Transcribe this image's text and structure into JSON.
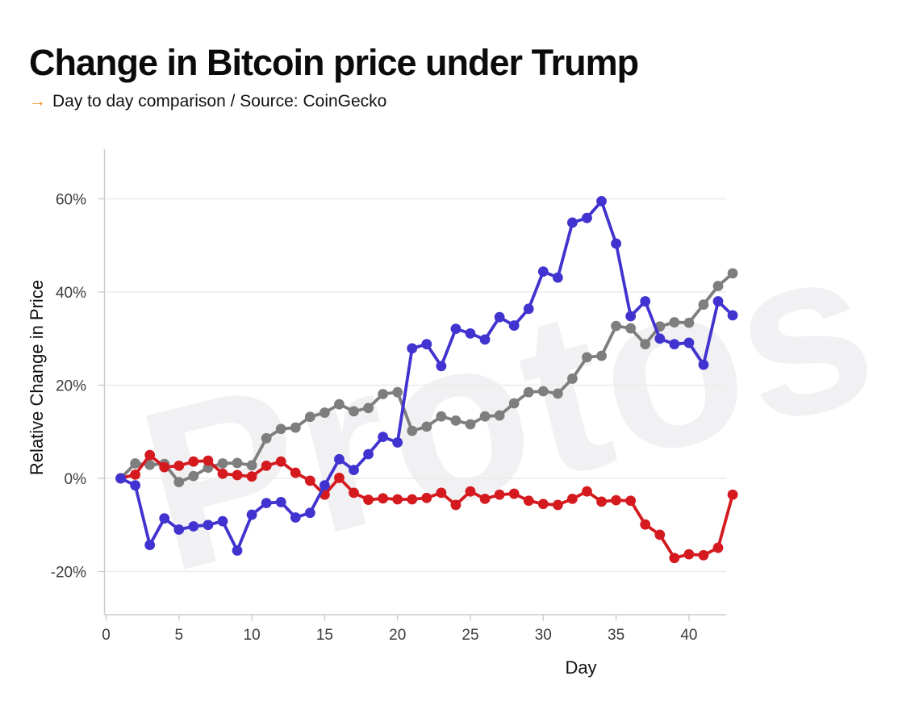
{
  "header": {
    "title": "Change in Bitcoin price under Trump",
    "subtitle_arrow": "→",
    "subtitle": "Day to day comparison / Source: CoinGecko"
  },
  "watermark": "Protos",
  "chart_data": {
    "type": "line",
    "title": "Change in Bitcoin price under Trump",
    "xlabel": "Day",
    "ylabel": "Relative Change in Price",
    "grid": "horizontal",
    "legend": "none (cut off outside visible area)",
    "xlim": [
      0,
      42.5
    ],
    "ylim": [
      -29,
      70
    ],
    "x_ticks": [
      0,
      5,
      10,
      15,
      20,
      25,
      30,
      35,
      40
    ],
    "y_ticks": [
      60,
      40,
      20,
      0,
      -20
    ],
    "y_tick_labels": [
      "60%",
      "40%",
      "20%",
      "0%",
      "-20%"
    ],
    "x": [
      1,
      2,
      3,
      4,
      5,
      6,
      7,
      8,
      9,
      10,
      11,
      12,
      13,
      14,
      15,
      16,
      17,
      18,
      19,
      20,
      21,
      22,
      23,
      24,
      25,
      26,
      27,
      28,
      29,
      30,
      31,
      32,
      33,
      34,
      35,
      36,
      37,
      38,
      39,
      40,
      41,
      42,
      43
    ],
    "series": [
      {
        "name": "gray-series",
        "color": "#7e7e7e",
        "values": [
          0,
          3.2,
          2.9,
          3.1,
          -0.8,
          0.5,
          2.3,
          3.2,
          3.3,
          2.8,
          8.6,
          10.6,
          10.9,
          13.2,
          14.1,
          15.9,
          14.4,
          15.1,
          18.1,
          18.5,
          10.2,
          11.1,
          13.3,
          12.4,
          11.6,
          13.3,
          13.5,
          16.1,
          18.5,
          18.7,
          18.2,
          21.4,
          26.0,
          26.3,
          32.7,
          32.2,
          28.8,
          32.6,
          33.5,
          33.4,
          37.3,
          41.3,
          44.0
        ]
      },
      {
        "name": "red-series",
        "color": "#d41a1f",
        "values": [
          0,
          0.8,
          5.0,
          2.4,
          2.7,
          3.6,
          3.8,
          1.0,
          0.7,
          0.4,
          2.7,
          3.6,
          1.2,
          -0.5,
          -3.5,
          0.1,
          -3.1,
          -4.6,
          -4.3,
          -4.5,
          -4.5,
          -4.2,
          -3.1,
          -5.7,
          -2.8,
          -4.4,
          -3.5,
          -3.3,
          -4.8,
          -5.5,
          -5.7,
          -4.4,
          -2.8,
          -5.0,
          -4.7,
          -4.8,
          -9.9,
          -12.1,
          -17.1,
          -16.3,
          -16.5,
          -14.9,
          -3.5
        ]
      },
      {
        "name": "blue-series",
        "color": "#4133cf",
        "values": [
          0,
          -1.5,
          -14.3,
          -8.6,
          -11.0,
          -10.3,
          -10.0,
          -9.2,
          -15.5,
          -7.8,
          -5.3,
          -5.1,
          -8.4,
          -7.4,
          -1.5,
          4.1,
          1.8,
          5.2,
          8.9,
          7.7,
          27.9,
          28.8,
          24.1,
          32.1,
          31.1,
          29.8,
          34.6,
          32.8,
          36.4,
          44.4,
          43.1,
          54.9,
          55.9,
          59.5,
          50.4,
          34.8,
          38.0,
          30.0,
          28.8,
          29.1,
          24.4,
          38.0,
          35.0
        ]
      }
    ]
  }
}
